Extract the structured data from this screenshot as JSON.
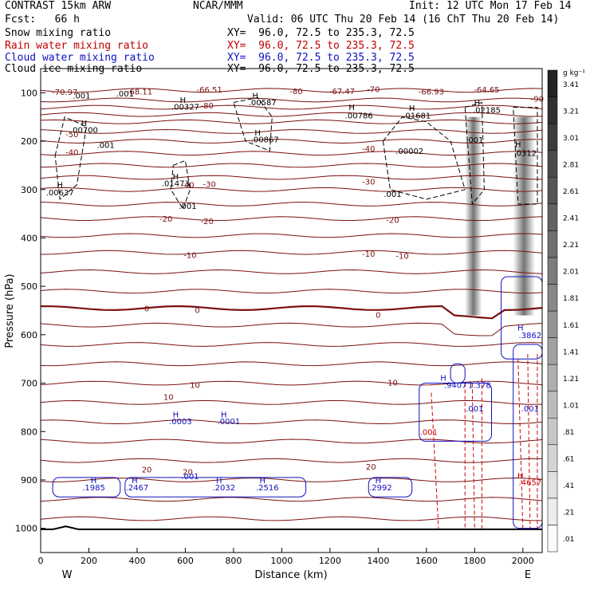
{
  "header": {
    "left1": "CONTRAST 15km ARW",
    "left2": "Fcst:   66 h",
    "center": "NCAR/MMM",
    "init": "Init: 12 UTC Mon 17 Feb 14",
    "valid": "Valid: 06 UTC Thu 20 Feb 14 (16 ChT Thu 20 Feb 14)"
  },
  "fields": [
    {
      "name": "Snow mixing ratio",
      "xy": "XY=  96.0, 72.5 to 235.3, 72.5",
      "color": "#000000"
    },
    {
      "name": "Rain water mixing ratio",
      "xy": "XY=  96.0, 72.5 to 235.3, 72.5",
      "color": "#c00000"
    },
    {
      "name": "Cloud water mixing ratio",
      "xy": "XY=  96.0, 72.5 to 235.3, 72.5",
      "color": "#1010c0"
    },
    {
      "name": "Cloud ice mixing ratio",
      "xy": "XY=  96.0, 72.5 to 235.3, 72.5",
      "color": "#000000"
    }
  ],
  "chart_data": {
    "type": "cross-section",
    "xlabel": "Distance (km)",
    "ylabel": "Pressure (hPa)",
    "xlim": [
      0,
      2080
    ],
    "ylim": [
      1050,
      50
    ],
    "x_ticks": [
      0,
      200,
      400,
      600,
      800,
      1000,
      1200,
      1400,
      1600,
      1800,
      2000
    ],
    "y_ticks": [
      100,
      200,
      300,
      400,
      500,
      600,
      700,
      800,
      900,
      1000
    ],
    "west_label": "W",
    "east_label": "E",
    "colorbar": {
      "unit": "g kg⁻¹",
      "ticks": [
        ".01",
        ".21",
        ".41",
        ".61",
        ".81",
        "1.01",
        "1.21",
        "1.41",
        "1.61",
        "1.81",
        "2.01",
        "2.21",
        "2.41",
        "2.61",
        "2.81",
        "3.01",
        "3.21",
        "3.41"
      ]
    },
    "temperature_labels": [
      {
        "x": 410,
        "p": 97,
        "text": "-68.11"
      },
      {
        "x": 700,
        "p": 93,
        "text": "-66.51"
      },
      {
        "x": 1060,
        "p": 96,
        "text": "-80"
      },
      {
        "x": 1250,
        "p": 96,
        "text": "-67.47"
      },
      {
        "x": 1380,
        "p": 92,
        "text": "-70"
      },
      {
        "x": 1620,
        "p": 97,
        "text": "-66.93"
      },
      {
        "x": 1850,
        "p": 93,
        "text": "-64.65"
      },
      {
        "x": 2060,
        "p": 112,
        "text": "-90"
      },
      {
        "x": 100,
        "p": 98,
        "text": "-70.97"
      },
      {
        "x": 690,
        "p": 126,
        "text": "-80"
      },
      {
        "x": 130,
        "p": 185,
        "text": "-50"
      },
      {
        "x": 130,
        "p": 222,
        "text": "-40"
      },
      {
        "x": 1360,
        "p": 215,
        "text": "-40"
      },
      {
        "x": 610,
        "p": 290,
        "text": "-40"
      },
      {
        "x": 700,
        "p": 288,
        "text": "-30"
      },
      {
        "x": 1360,
        "p": 283,
        "text": "-30"
      },
      {
        "x": 520,
        "p": 360,
        "text": "-20"
      },
      {
        "x": 690,
        "p": 365,
        "text": "-20"
      },
      {
        "x": 1460,
        "p": 362,
        "text": "-20"
      },
      {
        "x": 620,
        "p": 435,
        "text": "-10"
      },
      {
        "x": 1360,
        "p": 432,
        "text": "-10"
      },
      {
        "x": 1500,
        "p": 436,
        "text": "-10"
      },
      {
        "x": 440,
        "p": 545,
        "text": "0"
      },
      {
        "x": 650,
        "p": 548,
        "text": "0"
      },
      {
        "x": 1400,
        "p": 558,
        "text": "0"
      },
      {
        "x": 530,
        "p": 728,
        "text": "10"
      },
      {
        "x": 640,
        "p": 703,
        "text": "10"
      },
      {
        "x": 1460,
        "p": 698,
        "text": "10"
      },
      {
        "x": 440,
        "p": 878,
        "text": "20"
      },
      {
        "x": 610,
        "p": 883,
        "text": "20"
      },
      {
        "x": 1370,
        "p": 872,
        "text": "20"
      }
    ],
    "snow_labels": [
      {
        "x": 170,
        "p": 105,
        "text": ".001"
      },
      {
        "x": 350,
        "p": 101,
        "text": ".001"
      },
      {
        "x": 590,
        "p": 114,
        "text": "H"
      },
      {
        "x": 600,
        "p": 128,
        "text": ".00327"
      },
      {
        "x": 890,
        "p": 105,
        "text": "H"
      },
      {
        "x": 920,
        "p": 119,
        "text": ".00587"
      },
      {
        "x": 1290,
        "p": 129,
        "text": "H"
      },
      {
        "x": 1320,
        "p": 146,
        "text": ".00786"
      },
      {
        "x": 1540,
        "p": 131,
        "text": "H"
      },
      {
        "x": 1560,
        "p": 146,
        "text": ".01681"
      },
      {
        "x": 1810,
        "p": 120,
        "text": "H"
      },
      {
        "x": 1850,
        "p": 135,
        "text": ".02185"
      },
      {
        "x": 180,
        "p": 162,
        "text": "H"
      },
      {
        "x": 180,
        "p": 176,
        "text": ".00700"
      },
      {
        "x": 900,
        "p": 182,
        "text": "H"
      },
      {
        "x": 930,
        "p": 196,
        "text": ".00867"
      },
      {
        "x": 270,
        "p": 207,
        "text": ".001"
      },
      {
        "x": 1530,
        "p": 220,
        "text": ".00002"
      },
      {
        "x": 1800,
        "p": 197,
        "text": ".001"
      },
      {
        "x": 1980,
        "p": 206,
        "text": "H"
      },
      {
        "x": 2010,
        "p": 224,
        "text": ".0312"
      },
      {
        "x": 560,
        "p": 272,
        "text": "H"
      },
      {
        "x": 560,
        "p": 286,
        "text": ".01473"
      },
      {
        "x": 80,
        "p": 290,
        "text": "H"
      },
      {
        "x": 80,
        "p": 305,
        "text": ".00637"
      },
      {
        "x": 610,
        "p": 333,
        "text": ".001"
      },
      {
        "x": 1460,
        "p": 309,
        "text": ".001"
      }
    ],
    "rain_labels": [
      {
        "x": 1990,
        "p": 890,
        "text": "H"
      },
      {
        "x": 2030,
        "p": 904,
        "text": ".4657"
      },
      {
        "x": 1610,
        "p": 800,
        "text": ".001"
      }
    ],
    "cloud_labels": [
      {
        "x": 220,
        "p": 900,
        "text": "H"
      },
      {
        "x": 220,
        "p": 915,
        "text": ".1985"
      },
      {
        "x": 390,
        "p": 900,
        "text": "H"
      },
      {
        "x": 400,
        "p": 915,
        "text": ".2467"
      },
      {
        "x": 620,
        "p": 892,
        "text": ".001"
      },
      {
        "x": 740,
        "p": 900,
        "text": "H"
      },
      {
        "x": 760,
        "p": 915,
        "text": ".2032"
      },
      {
        "x": 920,
        "p": 900,
        "text": "H"
      },
      {
        "x": 940,
        "p": 915,
        "text": ".2516"
      },
      {
        "x": 1400,
        "p": 900,
        "text": "H"
      },
      {
        "x": 1410,
        "p": 915,
        "text": ".2992"
      },
      {
        "x": 560,
        "p": 764,
        "text": "H"
      },
      {
        "x": 580,
        "p": 778,
        "text": ".0003"
      },
      {
        "x": 760,
        "p": 764,
        "text": "H"
      },
      {
        "x": 780,
        "p": 778,
        "text": ".0001"
      },
      {
        "x": 1990,
        "p": 585,
        "text": "H"
      },
      {
        "x": 2030,
        "p": 600,
        "text": ".3862"
      },
      {
        "x": 1670,
        "p": 688,
        "text": "H"
      },
      {
        "x": 1720,
        "p": 703,
        "text": ".9407"
      },
      {
        "x": 1820,
        "p": 703,
        "text": "1.378"
      },
      {
        "x": 1800,
        "p": 752,
        "text": ".001"
      },
      {
        "x": 2030,
        "p": 752,
        "text": ".001"
      }
    ]
  }
}
